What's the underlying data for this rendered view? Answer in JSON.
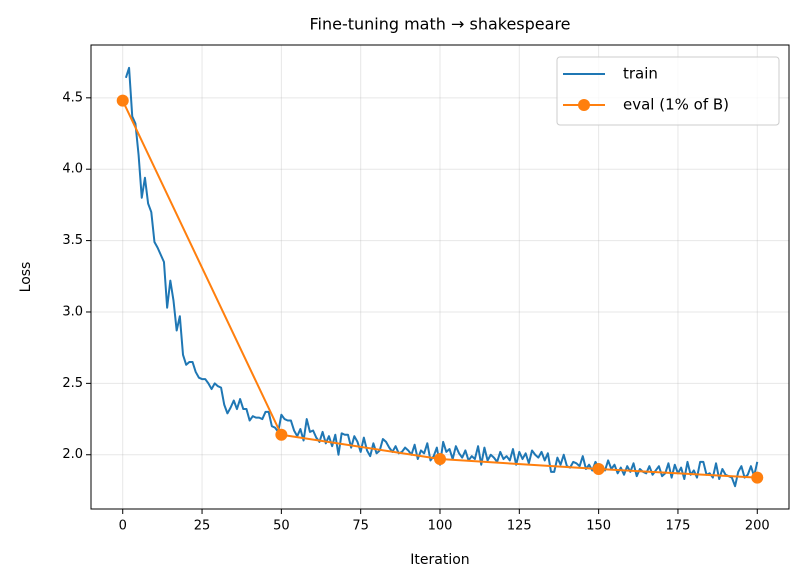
{
  "chart_data": {
    "type": "line",
    "title": "Fine-tuning math → shakespeare",
    "xlabel": "Iteration",
    "ylabel": "Loss",
    "xlim": [
      -10,
      210
    ],
    "xticks": [
      0,
      25,
      50,
      75,
      100,
      125,
      150,
      175,
      200
    ],
    "ylim": [
      1.62,
      4.87
    ],
    "yticks": [
      {
        "value": 2.0,
        "label": "2.0"
      },
      2.5,
      {
        "value": 3.0,
        "label": "3.0"
      },
      3.5,
      {
        "value": 4.0,
        "label": "4.0"
      },
      4.5
    ],
    "grid": true,
    "legend": "upper right",
    "series": [
      {
        "name": "train",
        "color": "#1f77b4",
        "marker": false,
        "x": [
          1,
          2,
          3,
          4,
          5,
          6,
          7,
          8,
          9,
          10,
          11,
          12,
          13,
          14,
          15,
          16,
          17,
          18,
          19,
          20,
          21,
          22,
          23,
          24,
          25,
          26,
          27,
          28,
          29,
          30,
          31,
          32,
          33,
          34,
          35,
          36,
          37,
          38,
          39,
          40,
          41,
          42,
          43,
          44,
          45,
          46,
          47,
          48,
          49,
          50,
          51,
          52,
          53,
          54,
          55,
          56,
          57,
          58,
          59,
          60,
          61,
          62,
          63,
          64,
          65,
          66,
          67,
          68,
          69,
          70,
          71,
          72,
          73,
          74,
          75,
          76,
          77,
          78,
          79,
          80,
          81,
          82,
          83,
          84,
          85,
          86,
          87,
          88,
          89,
          90,
          91,
          92,
          93,
          94,
          95,
          96,
          97,
          98,
          99,
          100,
          101,
          102,
          103,
          104,
          105,
          106,
          107,
          108,
          109,
          110,
          111,
          112,
          113,
          114,
          115,
          116,
          117,
          118,
          119,
          120,
          121,
          122,
          123,
          124,
          125,
          126,
          127,
          128,
          129,
          130,
          131,
          132,
          133,
          134,
          135,
          136,
          137,
          138,
          139,
          140,
          141,
          142,
          143,
          144,
          145,
          146,
          147,
          148,
          149,
          150,
          151,
          152,
          153,
          154,
          155,
          156,
          157,
          158,
          159,
          160,
          161,
          162,
          163,
          164,
          165,
          166,
          167,
          168,
          169,
          170,
          171,
          172,
          173,
          174,
          175,
          176,
          177,
          178,
          179,
          180,
          181,
          182,
          183,
          184,
          185,
          186,
          187,
          188,
          189,
          190,
          191,
          192,
          193,
          194,
          195,
          196,
          197,
          198,
          199,
          200
        ],
        "values": [
          4.64,
          4.71,
          4.37,
          4.32,
          4.1,
          3.8,
          3.94,
          3.76,
          3.7,
          3.49,
          3.45,
          3.4,
          3.35,
          3.03,
          3.22,
          3.08,
          2.87,
          2.97,
          2.7,
          2.63,
          2.65,
          2.65,
          2.58,
          2.54,
          2.53,
          2.53,
          2.5,
          2.46,
          2.5,
          2.48,
          2.47,
          2.35,
          2.29,
          2.33,
          2.38,
          2.32,
          2.39,
          2.32,
          2.32,
          2.24,
          2.27,
          2.26,
          2.26,
          2.25,
          2.3,
          2.3,
          2.2,
          2.19,
          2.16,
          2.28,
          2.25,
          2.24,
          2.24,
          2.17,
          2.13,
          2.18,
          2.1,
          2.25,
          2.16,
          2.17,
          2.12,
          2.09,
          2.16,
          2.08,
          2.13,
          2.06,
          2.14,
          2.0,
          2.15,
          2.14,
          2.14,
          2.05,
          2.13,
          2.09,
          2.02,
          2.12,
          2.03,
          1.99,
          2.08,
          2.01,
          2.03,
          2.11,
          2.09,
          2.05,
          2.02,
          2.06,
          2.01,
          2.02,
          2.05,
          2.03,
          2.0,
          2.07,
          1.97,
          2.03,
          2.01,
          2.08,
          1.96,
          1.99,
          2.05,
          1.93,
          2.09,
          2.02,
          2.04,
          1.97,
          2.06,
          2.01,
          1.98,
          2.03,
          1.96,
          1.99,
          1.97,
          2.06,
          1.93,
          2.05,
          1.96,
          2.0,
          1.98,
          1.95,
          2.02,
          1.97,
          1.99,
          1.96,
          2.04,
          1.93,
          2.02,
          1.97,
          2.01,
          1.94,
          2.03,
          2.0,
          1.98,
          2.02,
          1.96,
          2.01,
          1.88,
          1.88,
          1.98,
          1.93,
          2.0,
          1.92,
          1.91,
          1.95,
          1.94,
          1.92,
          1.99,
          1.9,
          1.93,
          1.89,
          1.95,
          1.91,
          1.92,
          1.89,
          1.96,
          1.9,
          1.93,
          1.87,
          1.91,
          1.86,
          1.92,
          1.88,
          1.94,
          1.85,
          1.9,
          1.88,
          1.87,
          1.92,
          1.86,
          1.89,
          1.92,
          1.85,
          1.87,
          1.94,
          1.84,
          1.93,
          1.87,
          1.91,
          1.83,
          1.95,
          1.86,
          1.89,
          1.84,
          1.95,
          1.95,
          1.86,
          1.87,
          1.84,
          1.94,
          1.83,
          1.9,
          1.86,
          1.85,
          1.84,
          1.78,
          1.88,
          1.92,
          1.84,
          1.86,
          1.92,
          1.85,
          1.95
        ]
      },
      {
        "name": "eval (1% of B)",
        "color": "#ff7f0e",
        "marker": true,
        "x": [
          0,
          50,
          100,
          150,
          200
        ],
        "values": [
          4.48,
          2.14,
          1.97,
          1.9,
          1.84
        ]
      }
    ]
  }
}
